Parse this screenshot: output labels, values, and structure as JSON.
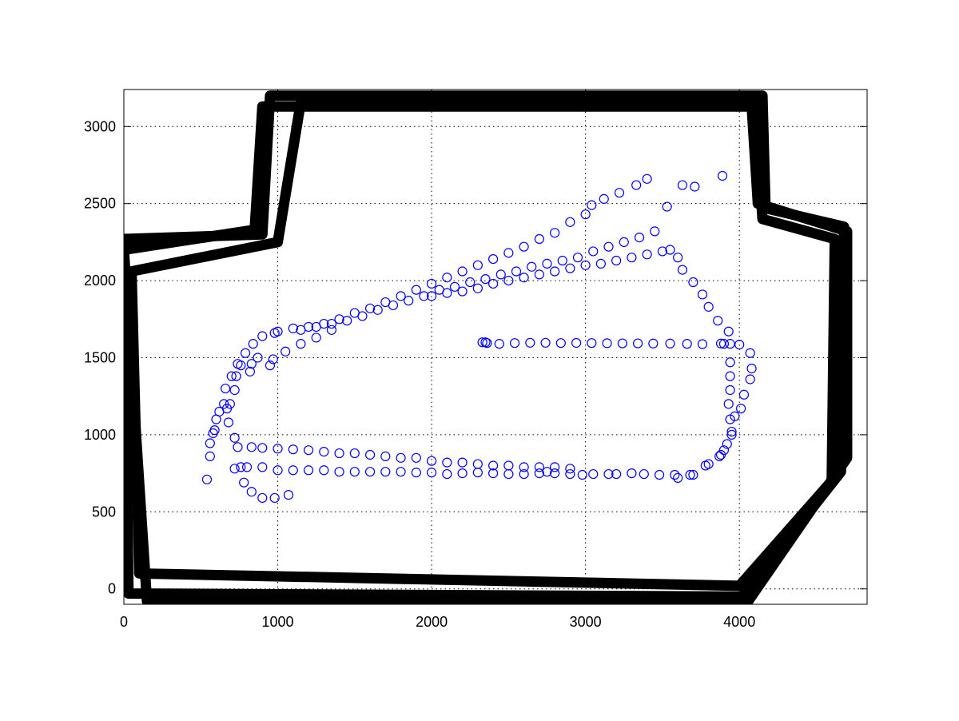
{
  "chart_data": {
    "type": "scatter",
    "xlim": [
      0,
      4830
    ],
    "ylim": [
      -100,
      3240
    ],
    "xticks": [
      0,
      1000,
      2000,
      3000,
      4000
    ],
    "yticks": [
      0,
      500,
      1000,
      1500,
      2000,
      2500,
      3000
    ],
    "grid": true,
    "series": [
      {
        "kind": "line",
        "color": "#000000",
        "x": [
          0,
          900,
          950,
          4150,
          4170,
          4680,
          4660,
          4020,
          30,
          0
        ],
        "values": [
          2270,
          2300,
          3200,
          3200,
          2470,
          2350,
          760,
          -50,
          -30,
          2270
        ]
      },
      {
        "kind": "line",
        "color": "#000000",
        "x": [
          50,
          1000,
          1150,
          4100,
          4150,
          4620,
          4600,
          4000,
          100,
          50
        ],
        "values": [
          2060,
          2250,
          3160,
          3150,
          2400,
          2270,
          700,
          20,
          100,
          2060
        ]
      },
      {
        "kind": "line",
        "color": "#000000",
        "x": [
          0,
          850,
          900,
          4080,
          4120,
          4700,
          4700,
          4050,
          150,
          0
        ],
        "values": [
          2200,
          2330,
          3130,
          3130,
          2500,
          2320,
          850,
          -90,
          -80,
          2200
        ]
      },
      {
        "kind": "circles",
        "color": "#0000ff",
        "x": [
          2330,
          2350,
          2360,
          2440,
          2540,
          2640,
          2740,
          2840,
          2940,
          3040,
          3140,
          3240,
          3340,
          3440,
          3550,
          3660,
          3760,
          3880,
          3940,
          4000,
          3930,
          3940,
          3940,
          3940,
          3930,
          3940,
          3950,
          3950,
          3920,
          3880,
          3870,
          3800,
          3780,
          4070,
          4080,
          4070,
          4030,
          4010,
          3970,
          3900,
          3600,
          3630,
          3700,
          3760,
          3800,
          3860,
          3900,
          3700,
          3680,
          3600,
          3580,
          3480,
          3380,
          3300,
          3200,
          3150,
          3050,
          2980,
          2900,
          2800,
          2750,
          2700,
          2600,
          2500,
          2400,
          2300,
          2200,
          2100,
          2000,
          1900,
          1800,
          1700,
          1600,
          1500,
          1400,
          1300,
          1200,
          1100,
          1000,
          900,
          800,
          760,
          720,
          2900,
          2800,
          2700,
          2600,
          2500,
          2400,
          2300,
          2200,
          2100,
          2000,
          1900,
          1800,
          1700,
          1600,
          1500,
          1400,
          1300,
          1200,
          1100,
          1000,
          900,
          830,
          740,
          720,
          680,
          670,
          690,
          720,
          730,
          760,
          820,
          830,
          870,
          970,
          540,
          560,
          560,
          580,
          590,
          600,
          620,
          650,
          660,
          700,
          740,
          790,
          840,
          900,
          980,
          950,
          1050,
          1150,
          1250,
          1350,
          780,
          830,
          900,
          980,
          1070,
          1000,
          1100,
          1200,
          1300,
          1400,
          1500,
          1600,
          1700,
          1800,
          1900,
          2000,
          2100,
          2200,
          2300,
          2400,
          2500,
          2600,
          2700,
          2800,
          2900,
          3000,
          3040,
          3120,
          3220,
          3330,
          3400,
          1150,
          1250,
          1350,
          1450,
          1550,
          1650,
          1750,
          1850,
          1950,
          2050,
          2150,
          2250,
          2350,
          2450,
          2550,
          2650,
          2750,
          2850,
          2950,
          3050,
          3150,
          3250,
          3350,
          3450,
          2000,
          2100,
          2200,
          2300,
          2400,
          2500,
          2600,
          2700,
          2800,
          2900,
          3000,
          3100,
          3200,
          3300,
          3400,
          3500,
          3550,
          3530,
          3630,
          3710,
          3890
        ],
        "values": [
          1600,
          1600,
          1595,
          1590,
          1595,
          1597,
          1597,
          1595,
          1596,
          1595,
          1594,
          1593,
          1593,
          1592,
          1592,
          1590,
          1588,
          1592,
          1590,
          1585,
          1670,
          1470,
          1380,
          1290,
          1200,
          1100,
          1020,
          1000,
          940,
          870,
          860,
          810,
          800,
          1530,
          1430,
          1360,
          1260,
          1170,
          1120,
          900,
          2150,
          2070,
          1990,
          1910,
          1830,
          1740,
          1590,
          740,
          740,
          720,
          740,
          740,
          745,
          750,
          745,
          745,
          745,
          740,
          745,
          750,
          760,
          750,
          745,
          745,
          750,
          755,
          750,
          745,
          755,
          755,
          760,
          760,
          760,
          760,
          760,
          770,
          770,
          770,
          770,
          790,
          790,
          790,
          780,
          780,
          790,
          790,
          790,
          800,
          800,
          810,
          820,
          820,
          830,
          850,
          850,
          860,
          870,
          880,
          880,
          890,
          900,
          905,
          910,
          915,
          920,
          920,
          980,
          1080,
          1170,
          1200,
          1290,
          1380,
          1450,
          1410,
          1460,
          1500,
          1490,
          710,
          860,
          945,
          1010,
          1030,
          1100,
          1150,
          1200,
          1300,
          1380,
          1460,
          1530,
          1590,
          1640,
          1660,
          1450,
          1540,
          1590,
          1630,
          1680,
          690,
          630,
          590,
          590,
          610,
          1670,
          1690,
          1700,
          1720,
          1750,
          1790,
          1820,
          1860,
          1900,
          1940,
          1980,
          2020,
          2060,
          2100,
          2140,
          2180,
          2220,
          2270,
          2310,
          2380,
          2430,
          2490,
          2530,
          2570,
          2620,
          2660,
          1680,
          1700,
          1720,
          1740,
          1770,
          1810,
          1840,
          1870,
          1900,
          1940,
          1960,
          1990,
          2010,
          2040,
          2060,
          2090,
          2110,
          2130,
          2150,
          2190,
          2220,
          2250,
          2280,
          2320,
          1900,
          1920,
          1930,
          1950,
          1980,
          2000,
          2020,
          2040,
          2060,
          2080,
          2100,
          2110,
          2130,
          2150,
          2170,
          2190,
          2200,
          2480,
          2620,
          2610,
          2680
        ]
      }
    ]
  }
}
